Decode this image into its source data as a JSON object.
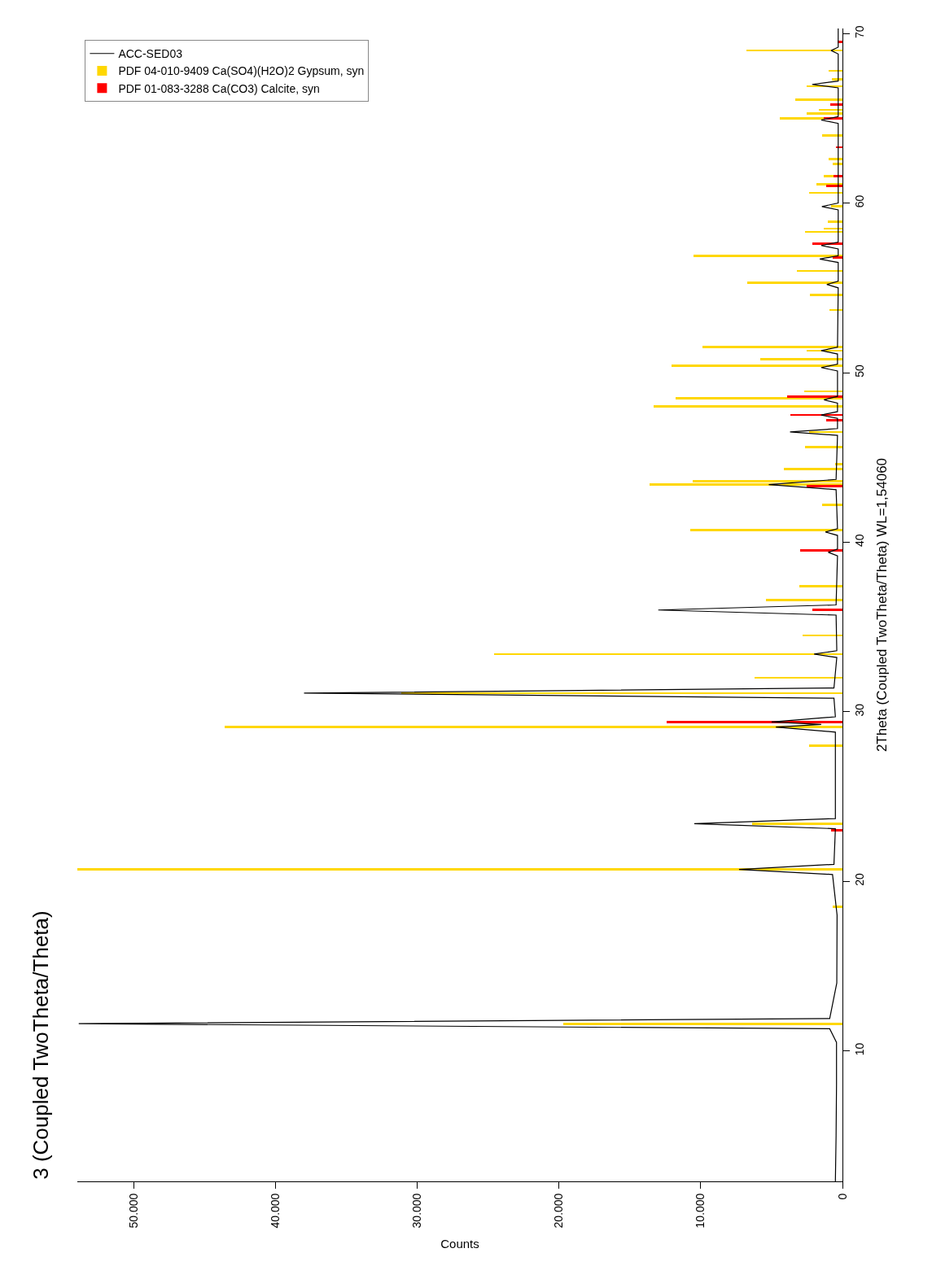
{
  "chart_data": {
    "type": "line",
    "title": "3 (Coupled TwoTheta/Theta)",
    "xlabel": "Counts",
    "ylabel": "2Theta (Coupled TwoTheta/Theta) WL=1,54060",
    "orientation": "horizontal",
    "xlim": [
      54000,
      0
    ],
    "xticks": [
      {
        "value": 50000,
        "label": "50.000"
      },
      {
        "value": 40000,
        "label": "40.000"
      },
      {
        "value": 30000,
        "label": "30.000"
      },
      {
        "value": 20000,
        "label": "20.000"
      },
      {
        "value": 10000,
        "label": "10.000"
      },
      0
    ],
    "ylim": [
      2.3,
      70.3
    ],
    "yticks": [
      10,
      20,
      30,
      40,
      50,
      60,
      70
    ],
    "legend": "top left",
    "series": [
      {
        "name": "ACC-SED03",
        "color": "#000000",
        "x": [
          2.3,
          5.0,
          8.0,
          10.5,
          11.3,
          11.6,
          11.9,
          14.0,
          18.0,
          20.4,
          20.7,
          21.0,
          23.1,
          23.4,
          23.7,
          28.8,
          29.1,
          29.25,
          29.4,
          29.7,
          30.8,
          31.1,
          31.4,
          33.2,
          33.4,
          33.6,
          35.7,
          36.0,
          36.3,
          39.2,
          39.4,
          39.6,
          40.4,
          40.6,
          40.8,
          43.1,
          43.4,
          43.7,
          46.3,
          46.5,
          46.7,
          47.3,
          47.5,
          47.7,
          48.2,
          48.4,
          48.6,
          50.1,
          50.3,
          50.5,
          51.1,
          51.3,
          51.5,
          55.0,
          55.2,
          55.4,
          56.5,
          56.7,
          56.9,
          57.3,
          57.5,
          57.7,
          59.6,
          59.8,
          60.0,
          64.7,
          64.9,
          65.1,
          66.8,
          67.0,
          67.2,
          68.8,
          69.0,
          69.2,
          70.3
        ],
        "values": [
          500,
          450,
          420,
          420,
          900,
          53900,
          900,
          400,
          380,
          700,
          7300,
          600,
          500,
          10460,
          500,
          500,
          4700,
          1500,
          5000,
          500,
          600,
          38000,
          600,
          400,
          2000,
          400,
          450,
          13000,
          450,
          350,
          1000,
          350,
          350,
          1200,
          350,
          450,
          5200,
          450,
          350,
          3700,
          350,
          350,
          1500,
          350,
          350,
          1300,
          350,
          350,
          1500,
          350,
          350,
          1500,
          350,
          300,
          1100,
          300,
          300,
          1600,
          300,
          300,
          1500,
          300,
          300,
          1450,
          300,
          300,
          1500,
          300,
          300,
          2140,
          300,
          300,
          800,
          300,
          300
        ]
      },
      {
        "name": "PDF 04-010-9409 Ca(SO4)(H2O)2 Gypsum, syn",
        "color": "#ffd700",
        "type": "bar",
        "x": [
          11.6,
          18.5,
          20.7,
          23.4,
          28.0,
          29.1,
          31.1,
          32.0,
          33.4,
          34.5,
          36.6,
          37.4,
          40.7,
          42.2,
          43.4,
          43.6,
          44.3,
          44.6,
          45.6,
          46.5,
          48.0,
          48.5,
          48.9,
          50.4,
          50.8,
          51.3,
          51.5,
          53.7,
          54.6,
          55.3,
          56.0,
          56.9,
          58.3,
          58.5,
          58.9,
          59.8,
          60.6,
          61.1,
          61.6,
          62.3,
          62.6,
          64.0,
          65.0,
          65.3,
          65.5,
          66.1,
          66.9,
          67.3,
          67.8,
          69.0
        ],
        "values": [
          19700,
          700,
          54000,
          6400,
          2370,
          43600,
          31150,
          6200,
          24600,
          2800,
          5400,
          3060,
          10750,
          1450,
          13600,
          10580,
          4160,
          520,
          2660,
          2370,
          13350,
          11800,
          2720,
          12080,
          5780,
          2500,
          9880,
          920,
          2310,
          6700,
          3240,
          10500,
          2660,
          1330,
          1040,
          800,
          2370,
          1850,
          1330,
          700,
          980,
          1450,
          4400,
          2500,
          1680,
          3350,
          2540,
          750,
          980,
          6760
        ]
      },
      {
        "name": "PDF 01-083-3288 Ca(CO3) Calcite, syn",
        "color": "#ff0000",
        "type": "bar",
        "x": [
          23.0,
          29.4,
          36.0,
          39.5,
          43.3,
          47.2,
          47.5,
          48.6,
          56.8,
          57.6,
          61.0,
          61.6,
          63.3,
          65.0,
          65.8,
          69.5
        ],
        "values": [
          800,
          12400,
          2100,
          3000,
          2500,
          1160,
          3700,
          3930,
          700,
          2140,
          1160,
          640,
          460,
          1330,
          870,
          350
        ]
      }
    ]
  }
}
